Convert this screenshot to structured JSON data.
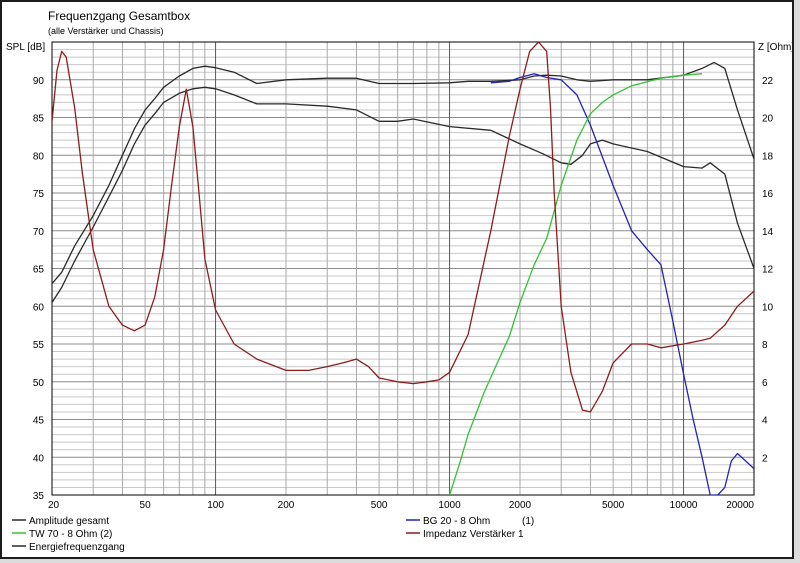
{
  "chart_data": {
    "type": "line",
    "title": "Frequenzgang Gesamtbox",
    "subtitle": "(alle Verstärker und Chassis)",
    "ylabel": "SPL [dB]",
    "y2label": "Z [Ohm]",
    "x_scale": "log",
    "xlim": [
      20,
      20000
    ],
    "ylim": [
      35,
      95
    ],
    "y2lim": [
      0,
      24
    ],
    "x_ticks": [
      20,
      50,
      100,
      200,
      500,
      1000,
      2000,
      5000,
      10000,
      20000
    ],
    "y_ticks": [
      35,
      40,
      45,
      50,
      55,
      60,
      65,
      70,
      75,
      80,
      85,
      90
    ],
    "y2_ticks": [
      2,
      4,
      6,
      8,
      10,
      12,
      14,
      16,
      18,
      20,
      22
    ],
    "grid": true,
    "series": [
      {
        "name": "Amplitude gesamt",
        "axis": "left",
        "color": "#2a2a2a",
        "x": [
          20,
          22,
          25,
          30,
          35,
          40,
          45,
          50,
          55,
          60,
          70,
          80,
          90,
          100,
          120,
          150,
          200,
          300,
          400,
          500,
          700,
          1000,
          1200,
          1500,
          2000,
          2300,
          2600,
          3000,
          3500,
          4000,
          5000,
          7000,
          10000,
          12000,
          13500,
          15000,
          17000,
          20000
        ],
        "y": [
          63,
          64.5,
          68,
          72,
          76,
          80,
          83.5,
          86,
          87.5,
          89,
          90.5,
          91.5,
          91.8,
          91.6,
          91,
          89.5,
          90,
          90.2,
          90.2,
          89.5,
          89.5,
          89.6,
          89.8,
          89.8,
          90,
          90.5,
          90.6,
          90.5,
          90,
          89.8,
          90,
          90,
          90.6,
          91.5,
          92.3,
          91.5,
          86,
          79.5
        ]
      },
      {
        "name": "Energiefrequenzgang",
        "axis": "left",
        "color": "#2a2a2a",
        "x": [
          20,
          22,
          25,
          30,
          35,
          40,
          45,
          50,
          55,
          60,
          70,
          80,
          90,
          100,
          120,
          150,
          200,
          300,
          400,
          500,
          600,
          700,
          1000,
          1500,
          2000,
          2500,
          3000,
          3300,
          3700,
          4000,
          4500,
          5000,
          7000,
          10000,
          12000,
          13000,
          15000,
          17000,
          20000
        ],
        "y": [
          60.5,
          62.5,
          66,
          70.5,
          74.5,
          78,
          81.5,
          84,
          85.5,
          87,
          88.2,
          88.8,
          89,
          88.8,
          88,
          86.8,
          86.8,
          86.5,
          86,
          84.5,
          84.5,
          84.8,
          83.8,
          83.3,
          81.5,
          80.2,
          79,
          78.8,
          80,
          81.5,
          82,
          81.5,
          80.5,
          78.5,
          78.3,
          79,
          77.5,
          71,
          65
        ]
      },
      {
        "name": "BG 20 - 8 Ohm",
        "axis": "left",
        "color": "#2323b4",
        "x": [
          1500,
          1800,
          2000,
          2300,
          2600,
          3000,
          3500,
          4000,
          5000,
          6000,
          7000,
          8000,
          9000,
          10000,
          11000,
          12000,
          13000,
          14000,
          15000,
          16000,
          17000,
          20000
        ],
        "y": [
          89.6,
          89.8,
          90.3,
          90.8,
          90.3,
          90,
          88,
          84,
          76,
          70,
          67.5,
          65.5,
          58,
          51,
          45,
          40,
          35,
          35,
          36,
          39.5,
          40.5,
          38.5
        ]
      },
      {
        "name": "TW 70 - 8 Ohm (2)",
        "axis": "left",
        "color": "#35c235",
        "x": [
          1000,
          1100,
          1200,
          1400,
          1600,
          1800,
          2000,
          2300,
          2600,
          3000,
          3500,
          4000,
          4500,
          5000,
          6000,
          8000,
          10000,
          12000
        ],
        "y": [
          35,
          39,
          43,
          48.5,
          52.5,
          56,
          60.5,
          65.5,
          69,
          76,
          82,
          85.5,
          87,
          88,
          89.2,
          90.2,
          90.6,
          90.8
        ]
      },
      {
        "name": "Impedanz Verstärker 1",
        "axis": "right",
        "color": "#8e1c1c",
        "x": [
          20,
          21,
          22,
          23,
          25,
          27,
          30,
          35,
          40,
          45,
          50,
          55,
          60,
          65,
          70,
          75,
          80,
          85,
          90,
          100,
          120,
          150,
          200,
          250,
          300,
          350,
          400,
          450,
          500,
          600,
          700,
          800,
          900,
          1000,
          1200,
          1500,
          1800,
          2000,
          2200,
          2400,
          2600,
          2700,
          2800,
          3000,
          3300,
          3700,
          4000,
          4500,
          5000,
          6000,
          7000,
          8000,
          10000,
          12000,
          13000,
          15000,
          17000,
          20000
        ],
        "y": [
          19.8,
          22.5,
          23.5,
          23.2,
          20.5,
          17,
          13,
          10,
          9,
          8.7,
          9,
          10.5,
          13,
          16.5,
          19.5,
          21.5,
          19.5,
          16,
          12.5,
          9.8,
          8,
          7.2,
          6.6,
          6.6,
          6.8,
          7,
          7.2,
          6.8,
          6.2,
          6,
          5.9,
          6,
          6.1,
          6.5,
          8.5,
          14,
          19,
          21.5,
          23.5,
          24,
          23.5,
          20.5,
          16,
          10,
          6.5,
          4.5,
          4.4,
          5.5,
          7,
          8,
          8,
          7.8,
          8,
          8.2,
          8.3,
          9,
          10,
          10.8
        ]
      }
    ],
    "legend": {
      "placement": "bottom",
      "entries": [
        {
          "label": "Amplitude gesamt",
          "color": "#2a2a2a"
        },
        {
          "label": "TW 70 - 8 Ohm (2)",
          "color": "#35c235"
        },
        {
          "label": "Energiefrequenzgang",
          "color": "#2a2a2a"
        },
        {
          "label": "BG 20 - 8 Ohm",
          "suffix": "(1)",
          "color": "#2323b4"
        },
        {
          "label": "Impedanz Verstärker 1",
          "color": "#8e1c1c"
        }
      ]
    }
  }
}
